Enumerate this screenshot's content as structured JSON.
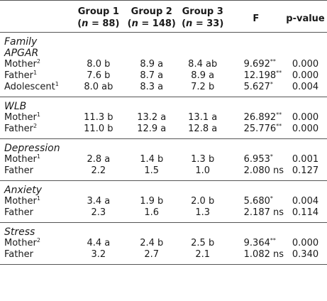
{
  "header": {
    "col1_line1": "Group 1",
    "col1_line2_pre": "(",
    "col1_line2_n": "n",
    "col1_line2_post": " = 88)",
    "col2_line1": "Group 2",
    "col2_line2_pre": "(",
    "col2_line2_n": "n",
    "col2_line2_post": " = 148)",
    "col3_line1": "Group 3",
    "col3_line2_pre": "(",
    "col3_line2_n": "n",
    "col3_line2_post": " = 33)",
    "col4": "F",
    "col5": "p-value"
  },
  "sections": [
    {
      "title_line1": "Family",
      "title_line2": "APGAR",
      "rows": [
        {
          "label": "Mother",
          "sup": "2",
          "g1": "8.0 b",
          "g2": "8.9 a",
          "g3": "8.4 ab",
          "f": "9.692",
          "fsup": "**",
          "p": "0.000"
        },
        {
          "label": "Father",
          "sup": "1",
          "g1": "7.6 b",
          "g2": "8.7 a",
          "g3": "8.9 a",
          "f": "12.198",
          "fsup": "**",
          "p": "0.000"
        },
        {
          "label": "Adolescent",
          "sup": "1",
          "g1": "8.0 ab",
          "g2": "8.3 a",
          "g3": "7.2 b",
          "f": "5.627",
          "fsup": "*",
          "p": "0.004"
        }
      ]
    },
    {
      "title_line1": "WLB",
      "rows": [
        {
          "label": "Mother",
          "sup": "1",
          "g1": "11.3 b",
          "g2": "13.2 a",
          "g3": "13.1 a",
          "f": "26.892",
          "fsup": "**",
          "p": "0.000"
        },
        {
          "label": "Father",
          "sup": "2",
          "g1": "11.0 b",
          "g2": "12.9 a",
          "g3": "12.8 a",
          "f": "25.776",
          "fsup": "**",
          "p": "0.000"
        }
      ]
    },
    {
      "title_line1": "Depression",
      "rows": [
        {
          "label": "Mother",
          "sup": "1",
          "g1": "2.8 a",
          "g2": "1.4 b",
          "g3": "1.3 b",
          "f": "6.953",
          "fsup": "*",
          "p": "0.001"
        },
        {
          "label": "Father",
          "sup": "",
          "g1": "2.2",
          "g2": "1.5",
          "g3": "1.0",
          "f": "2.080 ns",
          "fsup": "",
          "p": "0.127"
        }
      ]
    },
    {
      "title_line1": "Anxiety",
      "rows": [
        {
          "label": "Mother",
          "sup": "1",
          "g1": "3.4 a",
          "g2": "1.9 b",
          "g3": "2.0 b",
          "f": "5.680",
          "fsup": "*",
          "p": "0.004"
        },
        {
          "label": "Father",
          "sup": "",
          "g1": "2.3",
          "g2": "1.6",
          "g3": "1.3",
          "f": "2.187 ns",
          "fsup": "",
          "p": "0.114"
        }
      ]
    },
    {
      "title_line1": "Stress",
      "rows": [
        {
          "label": "Mother",
          "sup": "2",
          "g1": "4.4 a",
          "g2": "2.4 b",
          "g3": "2.5 b",
          "f": "9.364",
          "fsup": "**",
          "p": "0.000"
        },
        {
          "label": "Father",
          "sup": "",
          "g1": "3.2",
          "g2": "2.7",
          "g3": "2.1",
          "f": "1.082 ns",
          "fsup": "",
          "p": "0.340"
        }
      ]
    }
  ]
}
